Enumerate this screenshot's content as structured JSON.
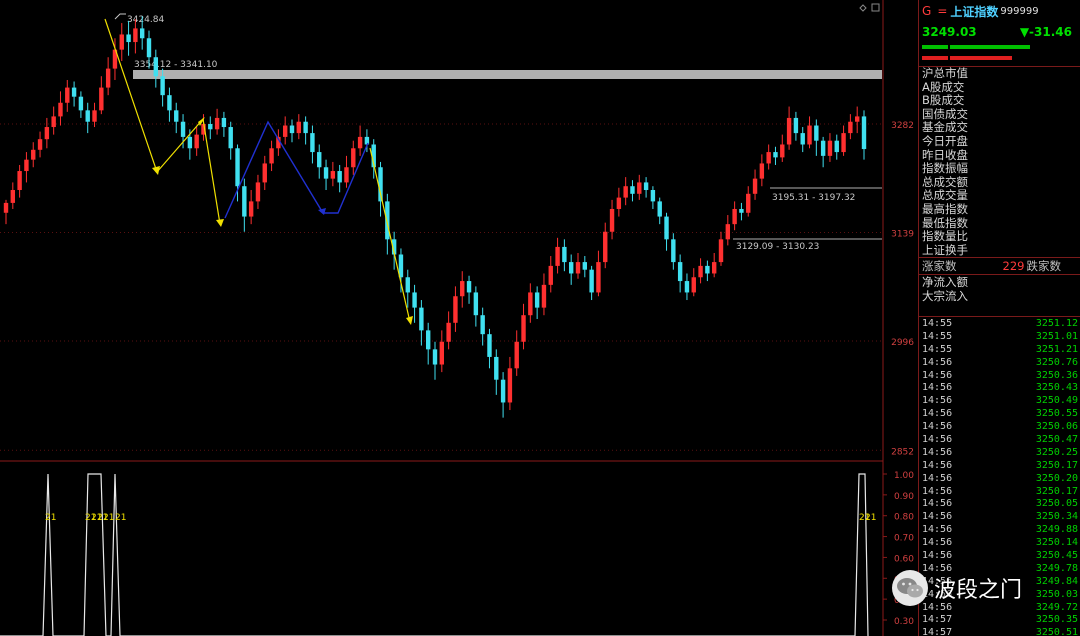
{
  "header": {
    "g_label": "G",
    "eq_label": "=",
    "index_name": "上证指数",
    "code": "999999",
    "price": "3249.03",
    "change": "▼-31.46"
  },
  "fields": [
    "沪总市值",
    "A股成交",
    "B股成交",
    "国债成交",
    "基金成交",
    "今日开盘",
    "昨日收盘",
    "指数振幅",
    "总成交额",
    "总成交量",
    "最高指数",
    "最低指数",
    "指数量比",
    "上证换手"
  ],
  "advance": {
    "label": "涨家数",
    "count": "229",
    "fall_label": "跌家数"
  },
  "flow": [
    "净流入额",
    "大宗流入"
  ],
  "ticks": [
    {
      "t": "14:55",
      "p": "3251.12"
    },
    {
      "t": "14:55",
      "p": "3251.01"
    },
    {
      "t": "14:55",
      "p": "3251.21"
    },
    {
      "t": "14:56",
      "p": "3250.76"
    },
    {
      "t": "14:56",
      "p": "3250.36"
    },
    {
      "t": "14:56",
      "p": "3250.43"
    },
    {
      "t": "14:56",
      "p": "3250.49"
    },
    {
      "t": "14:56",
      "p": "3250.55"
    },
    {
      "t": "14:56",
      "p": "3250.06"
    },
    {
      "t": "14:56",
      "p": "3250.47"
    },
    {
      "t": "14:56",
      "p": "3250.25"
    },
    {
      "t": "14:56",
      "p": "3250.17"
    },
    {
      "t": "14:56",
      "p": "3250.20"
    },
    {
      "t": "14:56",
      "p": "3250.17"
    },
    {
      "t": "14:56",
      "p": "3250.05"
    },
    {
      "t": "14:56",
      "p": "3250.34"
    },
    {
      "t": "14:56",
      "p": "3249.88"
    },
    {
      "t": "14:56",
      "p": "3250.14"
    },
    {
      "t": "14:56",
      "p": "3250.45"
    },
    {
      "t": "14:56",
      "p": "3249.78"
    },
    {
      "t": "14:56",
      "p": "3249.84"
    },
    {
      "t": "14:56",
      "p": "3250.03"
    },
    {
      "t": "14:56",
      "p": "3249.72"
    },
    {
      "t": "14:57",
      "p": "3250.35"
    },
    {
      "t": "14:57",
      "p": "3250.51"
    }
  ],
  "watermark": "波段之门",
  "chart_data": [
    {
      "type": "candlestick",
      "annotations": {
        "high": "3424.84",
        "zone_top": "3354.12 - 3341.10",
        "zone_mid": "3195.31 - 3197.32",
        "zone_low": "3129.09 - 3130.23"
      },
      "y_ticks": [
        "3282",
        "3139",
        "2996",
        "2852"
      ],
      "candles": [
        {
          "o": 3165,
          "c": 3178,
          "h": 3182,
          "l": 3150
        },
        {
          "o": 3178,
          "c": 3195,
          "h": 3205,
          "l": 3170
        },
        {
          "o": 3195,
          "c": 3220,
          "h": 3228,
          "l": 3185
        },
        {
          "o": 3220,
          "c": 3235,
          "h": 3245,
          "l": 3205
        },
        {
          "o": 3235,
          "c": 3248,
          "h": 3258,
          "l": 3225
        },
        {
          "o": 3248,
          "c": 3262,
          "h": 3272,
          "l": 3238
        },
        {
          "o": 3262,
          "c": 3278,
          "h": 3290,
          "l": 3250
        },
        {
          "o": 3278,
          "c": 3292,
          "h": 3305,
          "l": 3268
        },
        {
          "o": 3292,
          "c": 3310,
          "h": 3325,
          "l": 3280
        },
        {
          "o": 3310,
          "c": 3330,
          "h": 3340,
          "l": 3298
        },
        {
          "o": 3330,
          "c": 3318,
          "h": 3338,
          "l": 3305
        },
        {
          "o": 3318,
          "c": 3300,
          "h": 3325,
          "l": 3290
        },
        {
          "o": 3300,
          "c": 3285,
          "h": 3310,
          "l": 3270
        },
        {
          "o": 3285,
          "c": 3300,
          "h": 3310,
          "l": 3278
        },
        {
          "o": 3300,
          "c": 3330,
          "h": 3345,
          "l": 3295
        },
        {
          "o": 3330,
          "c": 3355,
          "h": 3370,
          "l": 3320
        },
        {
          "o": 3355,
          "c": 3380,
          "h": 3395,
          "l": 3340
        },
        {
          "o": 3380,
          "c": 3400,
          "h": 3415,
          "l": 3365
        },
        {
          "o": 3400,
          "c": 3390,
          "h": 3418,
          "l": 3372
        },
        {
          "o": 3390,
          "c": 3408,
          "h": 3420,
          "l": 3375
        },
        {
          "o": 3408,
          "c": 3395,
          "h": 3424,
          "l": 3380
        },
        {
          "o": 3395,
          "c": 3370,
          "h": 3405,
          "l": 3355
        },
        {
          "o": 3370,
          "c": 3345,
          "h": 3380,
          "l": 3330
        },
        {
          "o": 3345,
          "c": 3320,
          "h": 3355,
          "l": 3305
        },
        {
          "o": 3320,
          "c": 3300,
          "h": 3330,
          "l": 3285
        },
        {
          "o": 3300,
          "c": 3285,
          "h": 3310,
          "l": 3270
        },
        {
          "o": 3285,
          "c": 3265,
          "h": 3295,
          "l": 3250
        },
        {
          "o": 3265,
          "c": 3250,
          "h": 3275,
          "l": 3235
        },
        {
          "o": 3250,
          "c": 3268,
          "h": 3278,
          "l": 3240
        },
        {
          "o": 3268,
          "c": 3282,
          "h": 3295,
          "l": 3260
        },
        {
          "o": 3282,
          "c": 3275,
          "h": 3292,
          "l": 3262
        },
        {
          "o": 3275,
          "c": 3290,
          "h": 3302,
          "l": 3268
        },
        {
          "o": 3290,
          "c": 3278,
          "h": 3298,
          "l": 3265
        },
        {
          "o": 3278,
          "c": 3250,
          "h": 3285,
          "l": 3235
        },
        {
          "o": 3250,
          "c": 3200,
          "h": 3255,
          "l": 3180
        },
        {
          "o": 3200,
          "c": 3160,
          "h": 3210,
          "l": 3140
        },
        {
          "o": 3160,
          "c": 3180,
          "h": 3195,
          "l": 3150
        },
        {
          "o": 3180,
          "c": 3205,
          "h": 3215,
          "l": 3170
        },
        {
          "o": 3205,
          "c": 3230,
          "h": 3240,
          "l": 3195
        },
        {
          "o": 3230,
          "c": 3250,
          "h": 3260,
          "l": 3220
        },
        {
          "o": 3250,
          "c": 3265,
          "h": 3275,
          "l": 3240
        },
        {
          "o": 3265,
          "c": 3280,
          "h": 3292,
          "l": 3255
        },
        {
          "o": 3280,
          "c": 3270,
          "h": 3288,
          "l": 3258
        },
        {
          "o": 3270,
          "c": 3285,
          "h": 3295,
          "l": 3262
        },
        {
          "o": 3285,
          "c": 3270,
          "h": 3292,
          "l": 3255
        },
        {
          "o": 3270,
          "c": 3245,
          "h": 3280,
          "l": 3230
        },
        {
          "o": 3245,
          "c": 3225,
          "h": 3255,
          "l": 3210
        },
        {
          "o": 3225,
          "c": 3210,
          "h": 3235,
          "l": 3195
        },
        {
          "o": 3210,
          "c": 3220,
          "h": 3232,
          "l": 3200
        },
        {
          "o": 3220,
          "c": 3205,
          "h": 3228,
          "l": 3192
        },
        {
          "o": 3205,
          "c": 3225,
          "h": 3240,
          "l": 3198
        },
        {
          "o": 3225,
          "c": 3250,
          "h": 3260,
          "l": 3215
        },
        {
          "o": 3250,
          "c": 3265,
          "h": 3280,
          "l": 3240
        },
        {
          "o": 3265,
          "c": 3255,
          "h": 3275,
          "l": 3245
        },
        {
          "o": 3255,
          "c": 3225,
          "h": 3262,
          "l": 3210
        },
        {
          "o": 3225,
          "c": 3180,
          "h": 3232,
          "l": 3160
        },
        {
          "o": 3180,
          "c": 3130,
          "h": 3190,
          "l": 3110
        },
        {
          "o": 3130,
          "c": 3110,
          "h": 3140,
          "l": 3090
        },
        {
          "o": 3110,
          "c": 3080,
          "h": 3118,
          "l": 3060
        },
        {
          "o": 3080,
          "c": 3060,
          "h": 3090,
          "l": 3040
        },
        {
          "o": 3060,
          "c": 3040,
          "h": 3070,
          "l": 3020
        },
        {
          "o": 3040,
          "c": 3010,
          "h": 3050,
          "l": 2990
        },
        {
          "o": 3010,
          "c": 2985,
          "h": 3020,
          "l": 2965
        },
        {
          "o": 2985,
          "c": 2965,
          "h": 2995,
          "l": 2945
        },
        {
          "o": 2965,
          "c": 2995,
          "h": 3010,
          "l": 2955
        },
        {
          "o": 2995,
          "c": 3020,
          "h": 3035,
          "l": 2985
        },
        {
          "o": 3020,
          "c": 3055,
          "h": 3068,
          "l": 3008
        },
        {
          "o": 3055,
          "c": 3075,
          "h": 3088,
          "l": 3040
        },
        {
          "o": 3075,
          "c": 3060,
          "h": 3082,
          "l": 3045
        },
        {
          "o": 3060,
          "c": 3030,
          "h": 3068,
          "l": 3015
        },
        {
          "o": 3030,
          "c": 3005,
          "h": 3040,
          "l": 2990
        },
        {
          "o": 3005,
          "c": 2975,
          "h": 3012,
          "l": 2960
        },
        {
          "o": 2975,
          "c": 2945,
          "h": 2985,
          "l": 2925
        },
        {
          "o": 2945,
          "c": 2915,
          "h": 2955,
          "l": 2895
        },
        {
          "o": 2915,
          "c": 2960,
          "h": 2975,
          "l": 2905
        },
        {
          "o": 2960,
          "c": 2995,
          "h": 3010,
          "l": 2950
        },
        {
          "o": 2995,
          "c": 3030,
          "h": 3045,
          "l": 2985
        },
        {
          "o": 3030,
          "c": 3060,
          "h": 3072,
          "l": 3020
        },
        {
          "o": 3060,
          "c": 3040,
          "h": 3068,
          "l": 3025
        },
        {
          "o": 3040,
          "c": 3070,
          "h": 3085,
          "l": 3030
        },
        {
          "o": 3070,
          "c": 3095,
          "h": 3108,
          "l": 3060
        },
        {
          "o": 3095,
          "c": 3120,
          "h": 3132,
          "l": 3085
        },
        {
          "o": 3120,
          "c": 3100,
          "h": 3130,
          "l": 3088
        },
        {
          "o": 3100,
          "c": 3085,
          "h": 3110,
          "l": 3070
        },
        {
          "o": 3085,
          "c": 3100,
          "h": 3112,
          "l": 3078
        },
        {
          "o": 3100,
          "c": 3090,
          "h": 3108,
          "l": 3080
        },
        {
          "o": 3090,
          "c": 3060,
          "h": 3095,
          "l": 3050
        },
        {
          "o": 3060,
          "c": 3100,
          "h": 3115,
          "l": 3055
        },
        {
          "o": 3100,
          "c": 3140,
          "h": 3152,
          "l": 3092
        },
        {
          "o": 3140,
          "c": 3170,
          "h": 3182,
          "l": 3130
        },
        {
          "o": 3170,
          "c": 3185,
          "h": 3198,
          "l": 3160
        },
        {
          "o": 3185,
          "c": 3200,
          "h": 3212,
          "l": 3175
        },
        {
          "o": 3200,
          "c": 3190,
          "h": 3208,
          "l": 3180
        },
        {
          "o": 3190,
          "c": 3205,
          "h": 3215,
          "l": 3182
        },
        {
          "o": 3205,
          "c": 3195,
          "h": 3212,
          "l": 3185
        },
        {
          "o": 3195,
          "c": 3180,
          "h": 3200,
          "l": 3170
        },
        {
          "o": 3180,
          "c": 3160,
          "h": 3185,
          "l": 3150
        },
        {
          "o": 3160,
          "c": 3130,
          "h": 3165,
          "l": 3115
        },
        {
          "o": 3130,
          "c": 3100,
          "h": 3138,
          "l": 3090
        },
        {
          "o": 3100,
          "c": 3075,
          "h": 3110,
          "l": 3060
        },
        {
          "o": 3075,
          "c": 3060,
          "h": 3085,
          "l": 3050
        },
        {
          "o": 3060,
          "c": 3080,
          "h": 3092,
          "l": 3055
        },
        {
          "o": 3080,
          "c": 3095,
          "h": 3105,
          "l": 3072
        },
        {
          "o": 3095,
          "c": 3085,
          "h": 3102,
          "l": 3075
        },
        {
          "o": 3085,
          "c": 3100,
          "h": 3112,
          "l": 3080
        },
        {
          "o": 3100,
          "c": 3130,
          "h": 3140,
          "l": 3095
        },
        {
          "o": 3130,
          "c": 3150,
          "h": 3162,
          "l": 3122
        },
        {
          "o": 3150,
          "c": 3170,
          "h": 3180,
          "l": 3142
        },
        {
          "o": 3170,
          "c": 3165,
          "h": 3178,
          "l": 3155
        },
        {
          "o": 3165,
          "c": 3190,
          "h": 3200,
          "l": 3160
        },
        {
          "o": 3190,
          "c": 3210,
          "h": 3222,
          "l": 3182
        },
        {
          "o": 3210,
          "c": 3230,
          "h": 3242,
          "l": 3200
        },
        {
          "o": 3230,
          "c": 3245,
          "h": 3255,
          "l": 3222
        },
        {
          "o": 3245,
          "c": 3238,
          "h": 3252,
          "l": 3228
        },
        {
          "o": 3238,
          "c": 3255,
          "h": 3268,
          "l": 3232
        },
        {
          "o": 3255,
          "c": 3290,
          "h": 3305,
          "l": 3248
        },
        {
          "o": 3290,
          "c": 3270,
          "h": 3298,
          "l": 3260
        },
        {
          "o": 3270,
          "c": 3255,
          "h": 3278,
          "l": 3245
        },
        {
          "o": 3255,
          "c": 3280,
          "h": 3292,
          "l": 3250
        },
        {
          "o": 3280,
          "c": 3260,
          "h": 3288,
          "l": 3240
        },
        {
          "o": 3260,
          "c": 3240,
          "h": 3265,
          "l": 3225
        },
        {
          "o": 3240,
          "c": 3260,
          "h": 3270,
          "l": 3232
        },
        {
          "o": 3260,
          "c": 3245,
          "h": 3268,
          "l": 3235
        },
        {
          "o": 3245,
          "c": 3270,
          "h": 3280,
          "l": 3240
        },
        {
          "o": 3270,
          "c": 3285,
          "h": 3295,
          "l": 3262
        },
        {
          "o": 3285,
          "c": 3292,
          "h": 3305,
          "l": 3270
        },
        {
          "o": 3292,
          "c": 3249,
          "h": 3300,
          "l": 3235
        }
      ]
    },
    {
      "type": "line",
      "title": "",
      "y_ticks": [
        "1.00",
        "0.90",
        "0.80",
        "0.70",
        "0.60",
        "0.50",
        "0.40",
        "0.30"
      ],
      "label": "21"
    }
  ]
}
